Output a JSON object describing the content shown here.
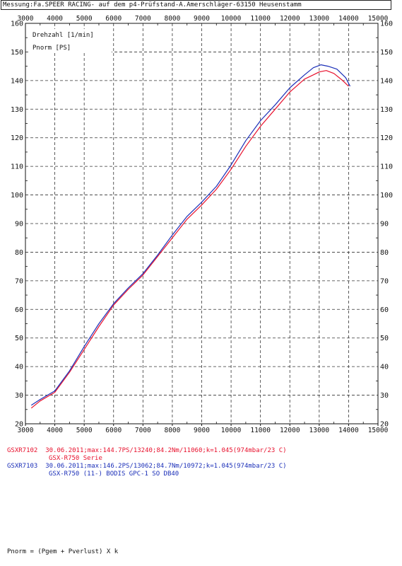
{
  "header": {
    "text": "Messung:Fa.SPEER RACING- auf dem p4-Prüfstand-A.Amerschläger-63150 Heusenstamm"
  },
  "chart_data": {
    "type": "line",
    "title": "",
    "xlabel": "Drehzahl [1/min]",
    "ylabel": "Pnorm [PS]",
    "xlim": [
      3000,
      15000
    ],
    "ylim": [
      20,
      160
    ],
    "x_ticks": [
      3000,
      4000,
      5000,
      6000,
      7000,
      8000,
      9000,
      10000,
      11000,
      12000,
      13000,
      14000,
      15000
    ],
    "y_ticks": [
      20,
      30,
      40,
      50,
      60,
      70,
      80,
      90,
      100,
      110,
      120,
      130,
      140,
      150,
      160
    ],
    "x_minor_step": 500,
    "y_minor_step": 5,
    "grid": true,
    "series": [
      {
        "name": "GSXR7102",
        "color": "#e8112d",
        "x": [
          3200,
          3500,
          4000,
          4500,
          5000,
          5500,
          6000,
          6500,
          7000,
          7500,
          8000,
          8500,
          9000,
          9500,
          10000,
          10500,
          11000,
          11500,
          12000,
          12500,
          12800,
          13000,
          13240,
          13500,
          13800,
          14000
        ],
        "y": [
          25.5,
          28,
          31,
          38,
          46,
          54,
          61.5,
          67,
          72,
          78.5,
          85,
          91.5,
          96.5,
          102,
          109,
          117,
          124,
          130,
          136,
          140.5,
          142,
          143,
          143.5,
          142.5,
          140,
          138
        ]
      },
      {
        "name": "GSXR7103",
        "color": "#1b2fb8",
        "x": [
          3200,
          3500,
          4000,
          4500,
          5000,
          5500,
          6000,
          6500,
          7000,
          7500,
          8000,
          8500,
          9000,
          9500,
          10000,
          10500,
          11000,
          11500,
          12000,
          12500,
          12800,
          13062,
          13300,
          13600,
          13900,
          14050
        ],
        "y": [
          26.5,
          28.5,
          31.5,
          38.5,
          47,
          55,
          62,
          67.5,
          72.5,
          79,
          86,
          92.5,
          97.5,
          103,
          110.5,
          119,
          126,
          131.5,
          137.5,
          142,
          144.5,
          145.5,
          145,
          144,
          141,
          138
        ]
      }
    ]
  },
  "legend": [
    {
      "id": "GSXR7102",
      "line1": "30.06.2011;max:144.7PS/13240;84.2Nm/11060;k=1.045(974mbar/23 C)",
      "line2": "GSX-R750 Serie"
    },
    {
      "id": "GSXR7103",
      "line1": "30.06.2011;max:146.2PS/13062;84.7Nm/10972;k=1.045(974mbar/23 C)",
      "line2": "GSX-R750 (11-) BODIS GPC-1 SO DB40"
    }
  ],
  "formula": "Pnorm = (Pgem + Pverlust) X k"
}
